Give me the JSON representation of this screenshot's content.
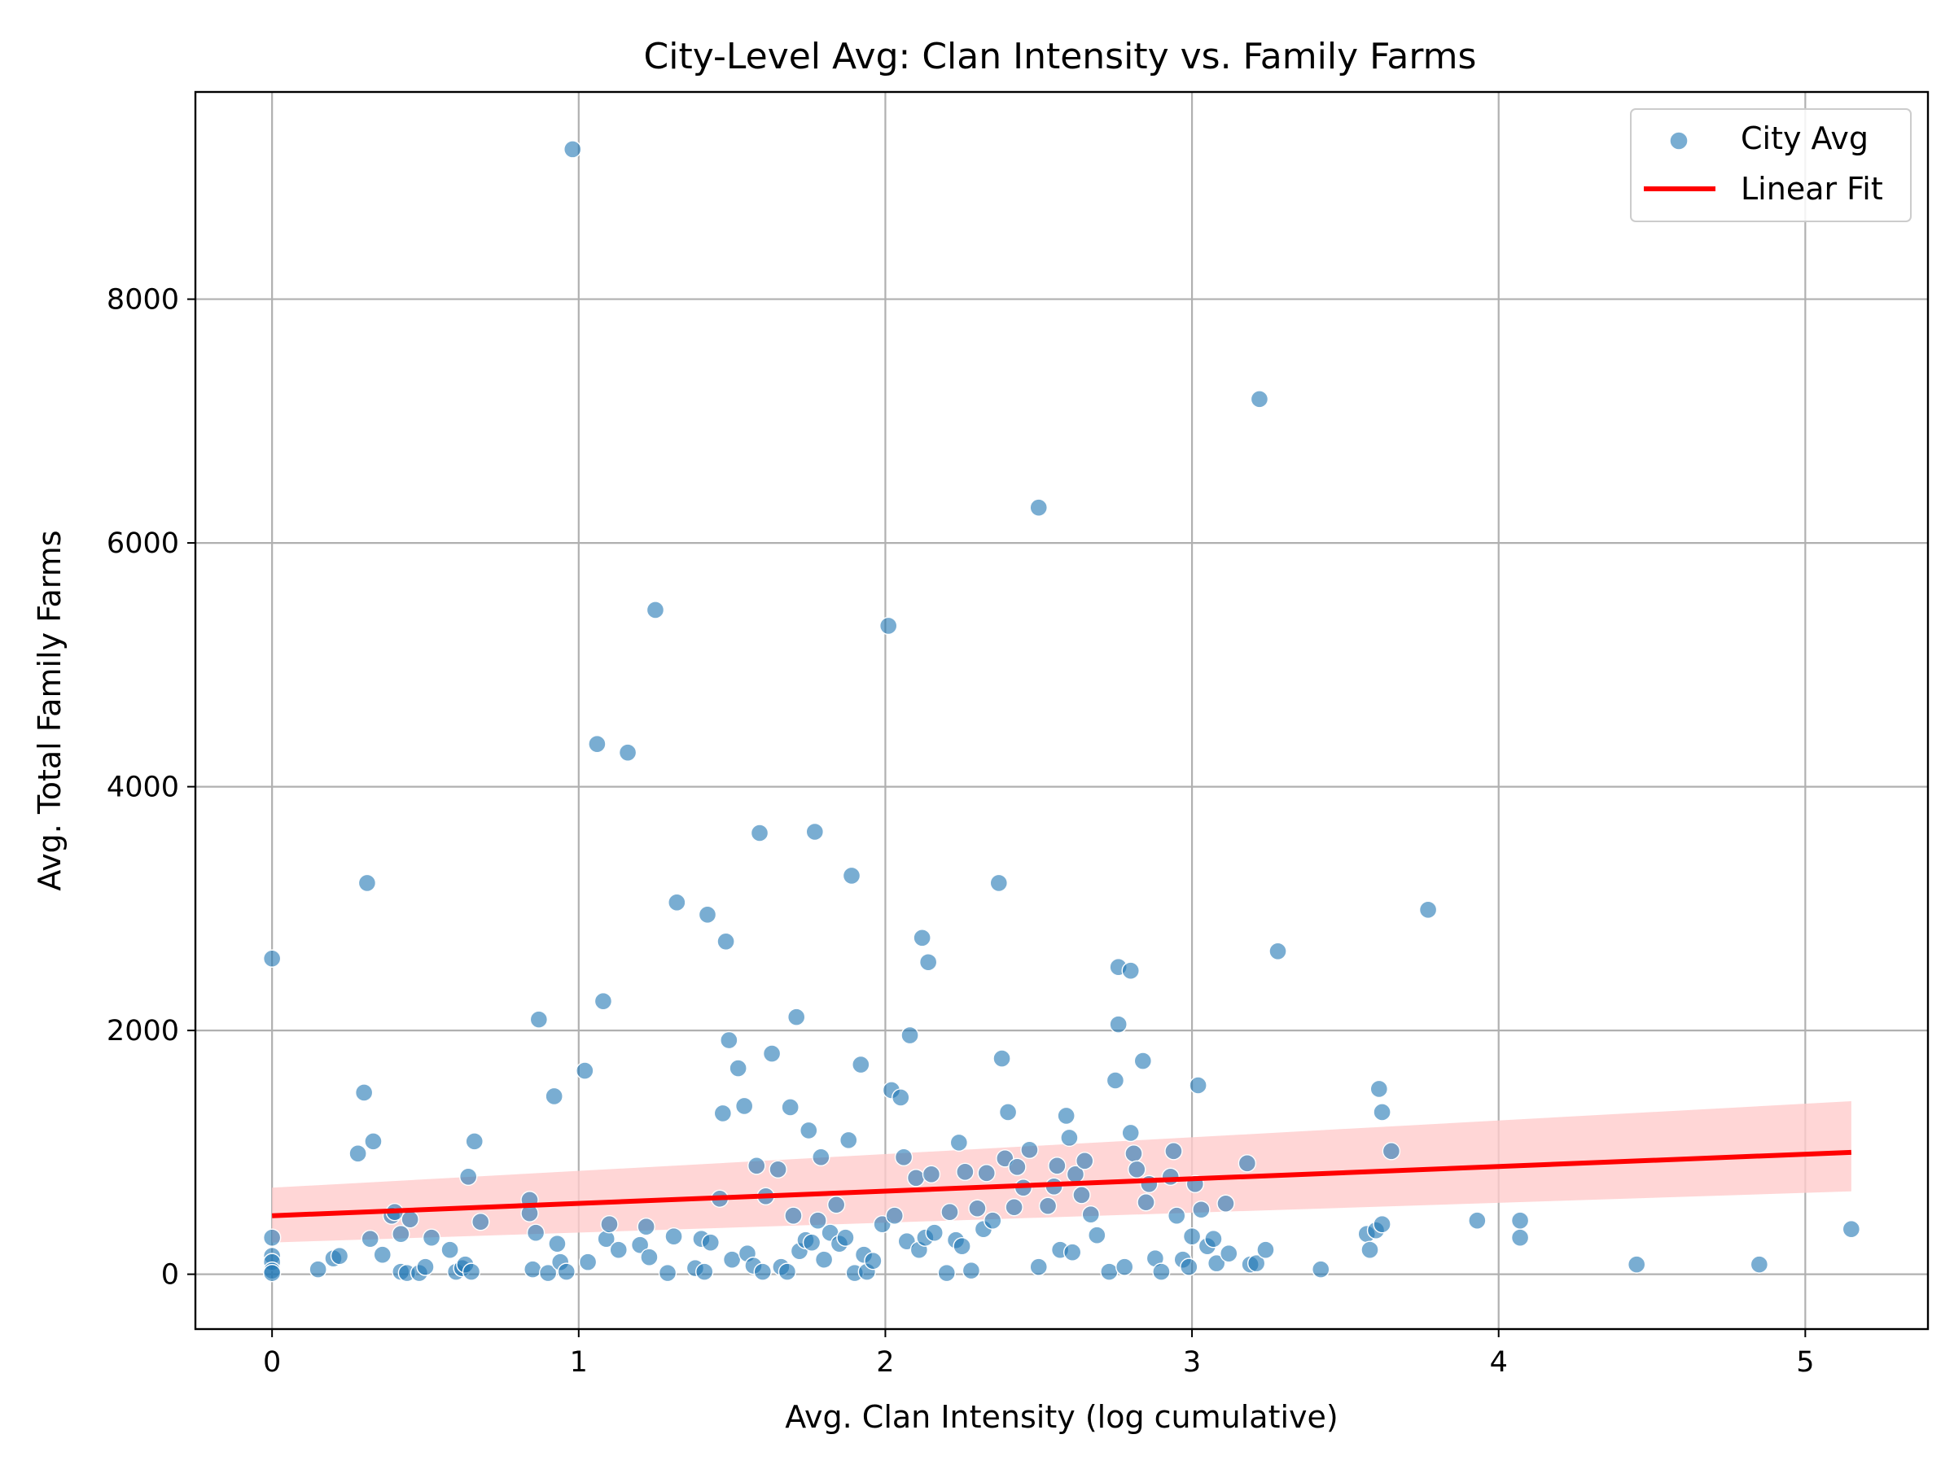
{
  "chart_data": {
    "type": "scatter",
    "title": "City-Level Avg: Clan Intensity vs. Family Farms",
    "xlabel": "Avg. Clan Intensity (log cumulative)",
    "ylabel": "Avg. Total Family Farms",
    "xlim": [
      -0.25,
      5.4
    ],
    "ylim": [
      -450,
      9700
    ],
    "xticks": [
      0,
      1,
      2,
      3,
      4,
      5
    ],
    "yticks": [
      0,
      2000,
      4000,
      6000,
      8000
    ],
    "grid": true,
    "legend_position": "top-right",
    "colors": {
      "points": "#1f77b4",
      "fit": "#ff0000",
      "band": "#ffcccc"
    },
    "series": [
      {
        "name": "City Avg",
        "kind": "scatter",
        "points": [
          [
            0,
            2590
          ],
          [
            0,
            300
          ],
          [
            0,
            150
          ],
          [
            0,
            100
          ],
          [
            0,
            30
          ],
          [
            0,
            10
          ],
          [
            0.15,
            40
          ],
          [
            0.2,
            130
          ],
          [
            0.22,
            150
          ],
          [
            0.28,
            990
          ],
          [
            0.3,
            1490
          ],
          [
            0.31,
            3210
          ],
          [
            0.32,
            290
          ],
          [
            0.33,
            1090
          ],
          [
            0.36,
            160
          ],
          [
            0.39,
            480
          ],
          [
            0.4,
            510
          ],
          [
            0.42,
            20
          ],
          [
            0.42,
            330
          ],
          [
            0.44,
            10
          ],
          [
            0.45,
            450
          ],
          [
            0.48,
            10
          ],
          [
            0.5,
            60
          ],
          [
            0.52,
            300
          ],
          [
            0.58,
            200
          ],
          [
            0.6,
            20
          ],
          [
            0.62,
            50
          ],
          [
            0.63,
            80
          ],
          [
            0.64,
            800
          ],
          [
            0.65,
            20
          ],
          [
            0.66,
            1090
          ],
          [
            0.68,
            430
          ],
          [
            0.84,
            610
          ],
          [
            0.84,
            500
          ],
          [
            0.85,
            40
          ],
          [
            0.86,
            340
          ],
          [
            0.87,
            2090
          ],
          [
            0.9,
            10
          ],
          [
            0.92,
            1460
          ],
          [
            0.93,
            250
          ],
          [
            0.94,
            100
          ],
          [
            0.96,
            20
          ],
          [
            0.98,
            9230
          ],
          [
            1.02,
            1670
          ],
          [
            1.03,
            100
          ],
          [
            1.06,
            4350
          ],
          [
            1.08,
            2240
          ],
          [
            1.09,
            290
          ],
          [
            1.1,
            410
          ],
          [
            1.13,
            200
          ],
          [
            1.16,
            4280
          ],
          [
            1.2,
            240
          ],
          [
            1.22,
            390
          ],
          [
            1.23,
            140
          ],
          [
            1.25,
            5450
          ],
          [
            1.29,
            10
          ],
          [
            1.31,
            310
          ],
          [
            1.32,
            3050
          ],
          [
            1.38,
            50
          ],
          [
            1.4,
            290
          ],
          [
            1.41,
            20
          ],
          [
            1.42,
            2950
          ],
          [
            1.43,
            260
          ],
          [
            1.46,
            620
          ],
          [
            1.47,
            1320
          ],
          [
            1.48,
            2730
          ],
          [
            1.49,
            1920
          ],
          [
            1.5,
            120
          ],
          [
            1.52,
            1690
          ],
          [
            1.54,
            1380
          ],
          [
            1.55,
            170
          ],
          [
            1.57,
            70
          ],
          [
            1.58,
            890
          ],
          [
            1.59,
            3620
          ],
          [
            1.6,
            20
          ],
          [
            1.61,
            640
          ],
          [
            1.63,
            1810
          ],
          [
            1.65,
            860
          ],
          [
            1.66,
            60
          ],
          [
            1.68,
            20
          ],
          [
            1.69,
            1370
          ],
          [
            1.7,
            480
          ],
          [
            1.71,
            2110
          ],
          [
            1.72,
            190
          ],
          [
            1.74,
            280
          ],
          [
            1.75,
            1180
          ],
          [
            1.76,
            260
          ],
          [
            1.77,
            3630
          ],
          [
            1.78,
            440
          ],
          [
            1.79,
            960
          ],
          [
            1.8,
            120
          ],
          [
            1.82,
            340
          ],
          [
            1.84,
            570
          ],
          [
            1.85,
            250
          ],
          [
            1.87,
            300
          ],
          [
            1.88,
            1100
          ],
          [
            1.89,
            3270
          ],
          [
            1.9,
            10
          ],
          [
            1.92,
            1720
          ],
          [
            1.93,
            160
          ],
          [
            1.94,
            20
          ],
          [
            1.96,
            110
          ],
          [
            1.99,
            410
          ],
          [
            2.01,
            5320
          ],
          [
            2.02,
            1510
          ],
          [
            2.03,
            480
          ],
          [
            2.05,
            1450
          ],
          [
            2.06,
            960
          ],
          [
            2.07,
            270
          ],
          [
            2.08,
            1960
          ],
          [
            2.1,
            790
          ],
          [
            2.11,
            200
          ],
          [
            2.12,
            2760
          ],
          [
            2.13,
            300
          ],
          [
            2.14,
            2560
          ],
          [
            2.15,
            820
          ],
          [
            2.16,
            340
          ],
          [
            2.2,
            10
          ],
          [
            2.21,
            510
          ],
          [
            2.23,
            280
          ],
          [
            2.24,
            1080
          ],
          [
            2.25,
            230
          ],
          [
            2.26,
            840
          ],
          [
            2.28,
            30
          ],
          [
            2.3,
            540
          ],
          [
            2.32,
            370
          ],
          [
            2.33,
            830
          ],
          [
            2.35,
            440
          ],
          [
            2.37,
            3210
          ],
          [
            2.38,
            1770
          ],
          [
            2.39,
            950
          ],
          [
            2.4,
            1330
          ],
          [
            2.42,
            550
          ],
          [
            2.43,
            880
          ],
          [
            2.45,
            710
          ],
          [
            2.47,
            1020
          ],
          [
            2.5,
            60
          ],
          [
            2.5,
            6290
          ],
          [
            2.53,
            560
          ],
          [
            2.55,
            720
          ],
          [
            2.56,
            890
          ],
          [
            2.57,
            200
          ],
          [
            2.59,
            1300
          ],
          [
            2.6,
            1120
          ],
          [
            2.61,
            180
          ],
          [
            2.62,
            820
          ],
          [
            2.64,
            650
          ],
          [
            2.65,
            930
          ],
          [
            2.67,
            490
          ],
          [
            2.69,
            320
          ],
          [
            2.73,
            20
          ],
          [
            2.75,
            1590
          ],
          [
            2.76,
            2050
          ],
          [
            2.76,
            2520
          ],
          [
            2.78,
            60
          ],
          [
            2.8,
            2490
          ],
          [
            2.8,
            1160
          ],
          [
            2.81,
            990
          ],
          [
            2.82,
            860
          ],
          [
            2.84,
            1750
          ],
          [
            2.85,
            590
          ],
          [
            2.86,
            740
          ],
          [
            2.88,
            130
          ],
          [
            2.9,
            20
          ],
          [
            2.93,
            800
          ],
          [
            2.94,
            1010
          ],
          [
            2.95,
            480
          ],
          [
            2.97,
            120
          ],
          [
            2.99,
            60
          ],
          [
            3.0,
            310
          ],
          [
            3.01,
            740
          ],
          [
            3.02,
            1550
          ],
          [
            3.03,
            530
          ],
          [
            3.05,
            230
          ],
          [
            3.07,
            290
          ],
          [
            3.08,
            90
          ],
          [
            3.11,
            580
          ],
          [
            3.12,
            170
          ],
          [
            3.18,
            910
          ],
          [
            3.19,
            80
          ],
          [
            3.21,
            90
          ],
          [
            3.22,
            7180
          ],
          [
            3.24,
            200
          ],
          [
            3.28,
            2650
          ],
          [
            3.42,
            40
          ],
          [
            3.57,
            330
          ],
          [
            3.58,
            200
          ],
          [
            3.6,
            360
          ],
          [
            3.61,
            1520
          ],
          [
            3.62,
            1330
          ],
          [
            3.62,
            410
          ],
          [
            3.65,
            1010
          ],
          [
            3.77,
            2990
          ],
          [
            3.93,
            440
          ],
          [
            4.07,
            440
          ],
          [
            4.07,
            300
          ],
          [
            4.45,
            80
          ],
          [
            4.85,
            80
          ],
          [
            5.15,
            370
          ]
        ]
      },
      {
        "name": "Linear Fit",
        "kind": "line",
        "x": [
          0,
          5.15
        ],
        "y": [
          480,
          1000
        ],
        "ci_lower": [
          260,
          680
        ],
        "ci_upper": [
          710,
          1420
        ]
      }
    ],
    "legend": [
      "City Avg",
      "Linear Fit"
    ]
  }
}
